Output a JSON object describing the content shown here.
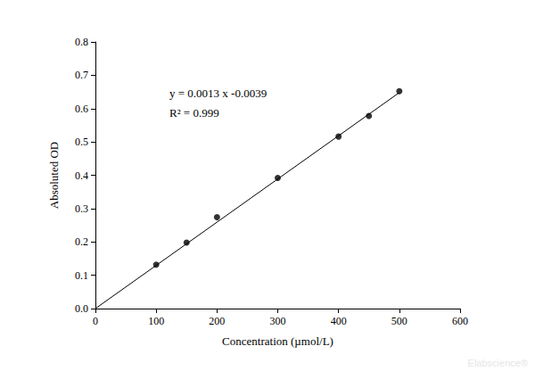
{
  "chart_data": {
    "type": "scatter",
    "x_label": "Concentration (µmol/L)",
    "y_label": "Absoluted OD",
    "x": [
      100,
      150,
      200,
      300,
      400,
      450,
      500
    ],
    "values": [
      0.132,
      0.198,
      0.274,
      0.392,
      0.516,
      0.578,
      0.652
    ],
    "color": "#000000",
    "marker": "circle",
    "fit_line": {
      "x": [
        0,
        500
      ],
      "values": [
        0,
        0.648
      ],
      "color": "#000000",
      "line_style": "solid"
    },
    "annotations": [
      "y = 0.0013 x -0.0039",
      "R² = 0.999"
    ],
    "watermark": "Elabscience®",
    "xlim": [
      0,
      600
    ],
    "xticks": [
      0,
      100,
      200,
      300,
      400,
      500,
      600
    ],
    "ylim": [
      0,
      0.8
    ],
    "yticks": [
      {
        "value": 0,
        "label": "0.0"
      },
      0.1,
      0.2,
      0.3,
      0.4,
      0.5,
      0.6,
      0.7,
      0.8
    ],
    "grid": false
  }
}
